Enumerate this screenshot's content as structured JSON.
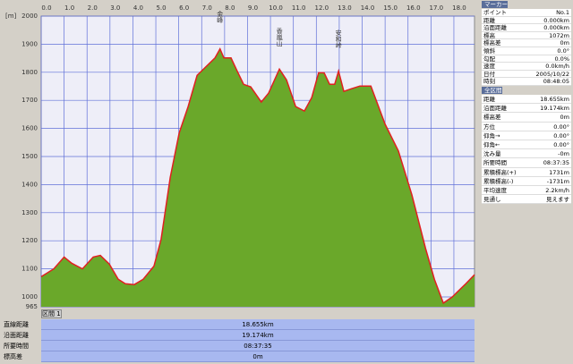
{
  "chart_data": {
    "type": "area",
    "y_unit": "[m]",
    "x": [
      0,
      0.55,
      1.0,
      1.33,
      1.8,
      2.27,
      2.58,
      2.97,
      3.36,
      3.67,
      4.06,
      4.45,
      4.92,
      5.23,
      5.63,
      6.02,
      6.41,
      6.8,
      7.19,
      7.58,
      7.8,
      7.97,
      8.28,
      8.55,
      8.83,
      9.14,
      9.6,
      9.92,
      10.39,
      10.7,
      11.1,
      11.48,
      11.8,
      12.1,
      12.34,
      12.58,
      12.8,
      12.97,
      13.2,
      13.52,
      13.9,
      14.38,
      15.0,
      15.58,
      16.17,
      16.76,
      17.15,
      17.54,
      17.93,
      18.52,
      18.9
    ],
    "values": [
      1072,
      1100,
      1142,
      1120,
      1100,
      1142,
      1148,
      1117,
      1063,
      1047,
      1044,
      1063,
      1110,
      1205,
      1426,
      1584,
      1678,
      1789,
      1820,
      1851,
      1883,
      1851,
      1851,
      1804,
      1757,
      1748,
      1694,
      1726,
      1811,
      1773,
      1678,
      1662,
      1710,
      1798,
      1798,
      1757,
      1757,
      1804,
      1732,
      1741,
      1751,
      1751,
      1615,
      1520,
      1363,
      1174,
      1063,
      978,
      1000,
      1047,
      1079
    ],
    "line_color": "#e02020",
    "fill_color": "#6aa82a",
    "grid": true,
    "xlim": [
      0,
      18.9
    ],
    "xticks": [
      {
        "value": 0,
        "label": "0.0"
      },
      {
        "value": 1,
        "label": "1.0"
      },
      {
        "value": 2,
        "label": "2.0"
      },
      {
        "value": 3,
        "label": "3.0"
      },
      {
        "value": 4,
        "label": "4.0"
      },
      {
        "value": 5,
        "label": "5.0"
      },
      {
        "value": 6,
        "label": "6.0"
      },
      {
        "value": 7,
        "label": "7.0"
      },
      {
        "value": 8,
        "label": "8.0"
      },
      {
        "value": 9,
        "label": "9.0"
      },
      {
        "value": 10,
        "label": "10.0"
      },
      {
        "value": 11,
        "label": "11.0"
      },
      {
        "value": 12,
        "label": "12.0"
      },
      {
        "value": 13,
        "label": "13.0"
      },
      {
        "value": 14,
        "label": "14.0"
      },
      {
        "value": 15,
        "label": "15.0"
      },
      {
        "value": 16,
        "label": "16.0"
      },
      {
        "value": 17,
        "label": "17.0"
      },
      {
        "value": 18,
        "label": "18.0"
      }
    ],
    "ylim": [
      965,
      2000
    ],
    "yticks": [
      965,
      1000,
      1100,
      1200,
      1300,
      1400,
      1500,
      1600,
      1700,
      1800,
      1900,
      2000
    ],
    "annotations": [
      {
        "text": "金峰",
        "x": 7.8,
        "y": 1883
      },
      {
        "text": "香嵐山",
        "x": 10.39,
        "y": 1811
      },
      {
        "text": "安和峠",
        "x": 12.97,
        "y": 1804
      }
    ]
  },
  "marker_panel": {
    "title": "マーカー",
    "rows": [
      [
        "ポイント",
        "No.1"
      ],
      [
        "距離",
        "0.000km"
      ],
      [
        "沿面距離",
        "0.000km"
      ],
      [
        "標高",
        "1072m"
      ],
      [
        "標高差",
        "0m"
      ],
      [
        "傾斜",
        "0.0°"
      ],
      [
        "勾配",
        "0.0%"
      ],
      [
        "速度",
        "0.0km/h"
      ],
      [
        "日付",
        "2005/10/22"
      ],
      [
        "時刻",
        "08:48:05"
      ]
    ]
  },
  "total_panel": {
    "title": "全区間",
    "rows": [
      [
        "距離",
        "18.655km"
      ],
      [
        "沿面距離",
        "19.174km"
      ],
      [
        "標高差",
        "0m"
      ],
      [
        "方位",
        "0.00°"
      ],
      [
        "仰角→",
        "0.00°"
      ],
      [
        "仰角←",
        "0.00°"
      ],
      [
        "沈み量",
        "-0m"
      ],
      [
        "所要時間",
        "08:37:35"
      ],
      [
        "累積標高(+)",
        "1731m"
      ],
      [
        "累積標高(-)",
        "-1731m"
      ],
      [
        "平均速度",
        "2.2km/h"
      ],
      [
        "見通し",
        "見えます"
      ]
    ]
  },
  "section": {
    "title": "区間 1",
    "rows": [
      [
        "直線距離",
        "18.655km"
      ],
      [
        "沿面距離",
        "19.174km"
      ],
      [
        "所要時間",
        "08:37:35"
      ],
      [
        "標高差",
        "0m"
      ]
    ]
  }
}
